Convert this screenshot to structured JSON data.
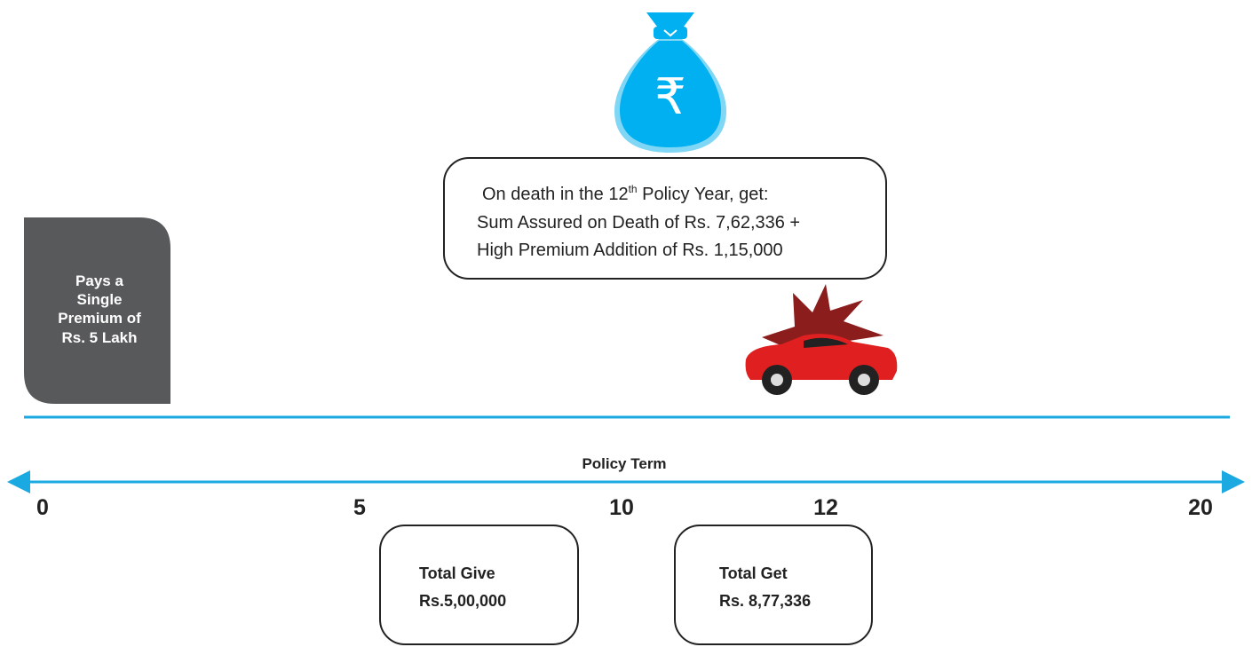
{
  "premium_box": {
    "lines": [
      "Pays a",
      "Single",
      "Premium of",
      "Rs. 5 Lakh"
    ]
  },
  "icon": {
    "symbol": "₹"
  },
  "death_box": {
    "line1_prefix": "On death in the 12",
    "line1_sup": "th",
    "line1_suffix": " Policy Year, get:",
    "line2": "Sum Assured on Death of Rs. 7,62,336 +",
    "line3": "High Premium Addition of Rs. 1,15,000"
  },
  "timeline": {
    "label": "Policy Term",
    "ticks": [
      "0",
      "5",
      "10",
      "12",
      "20"
    ]
  },
  "give_box": {
    "title": "Total Give",
    "amount": "Rs.5,00,000"
  },
  "get_box": {
    "title": "Total Get",
    "amount": "Rs. 8,77,336"
  }
}
